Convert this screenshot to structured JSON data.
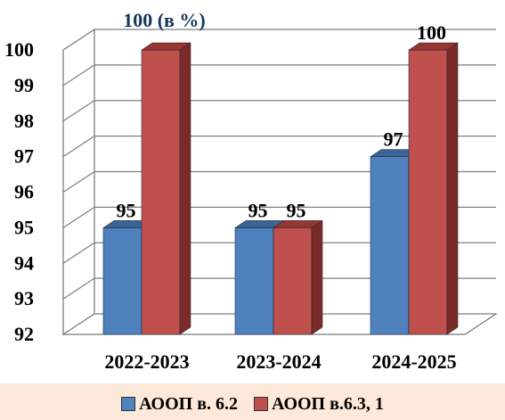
{
  "chart_data": {
    "type": "bar",
    "categories": [
      "2022-2023",
      "2023-2024",
      "2024-2025"
    ],
    "series": [
      {
        "name": "АООП в. 6.2",
        "values": [
          95,
          95,
          97
        ],
        "color": "#4f81bd"
      },
      {
        "name": "АООП в.6.3, 1",
        "values": [
          100,
          95,
          100
        ],
        "color": "#c0504d"
      }
    ],
    "data_labels": [
      [
        "95",
        "100 (в %)"
      ],
      [
        "95",
        "95"
      ],
      [
        "97",
        "100"
      ]
    ],
    "ylim": [
      92,
      100
    ],
    "yticks": [
      92,
      93,
      94,
      95,
      96,
      97,
      98,
      99,
      100
    ],
    "grid": true,
    "style": "3d",
    "legend_position": "bottom"
  }
}
